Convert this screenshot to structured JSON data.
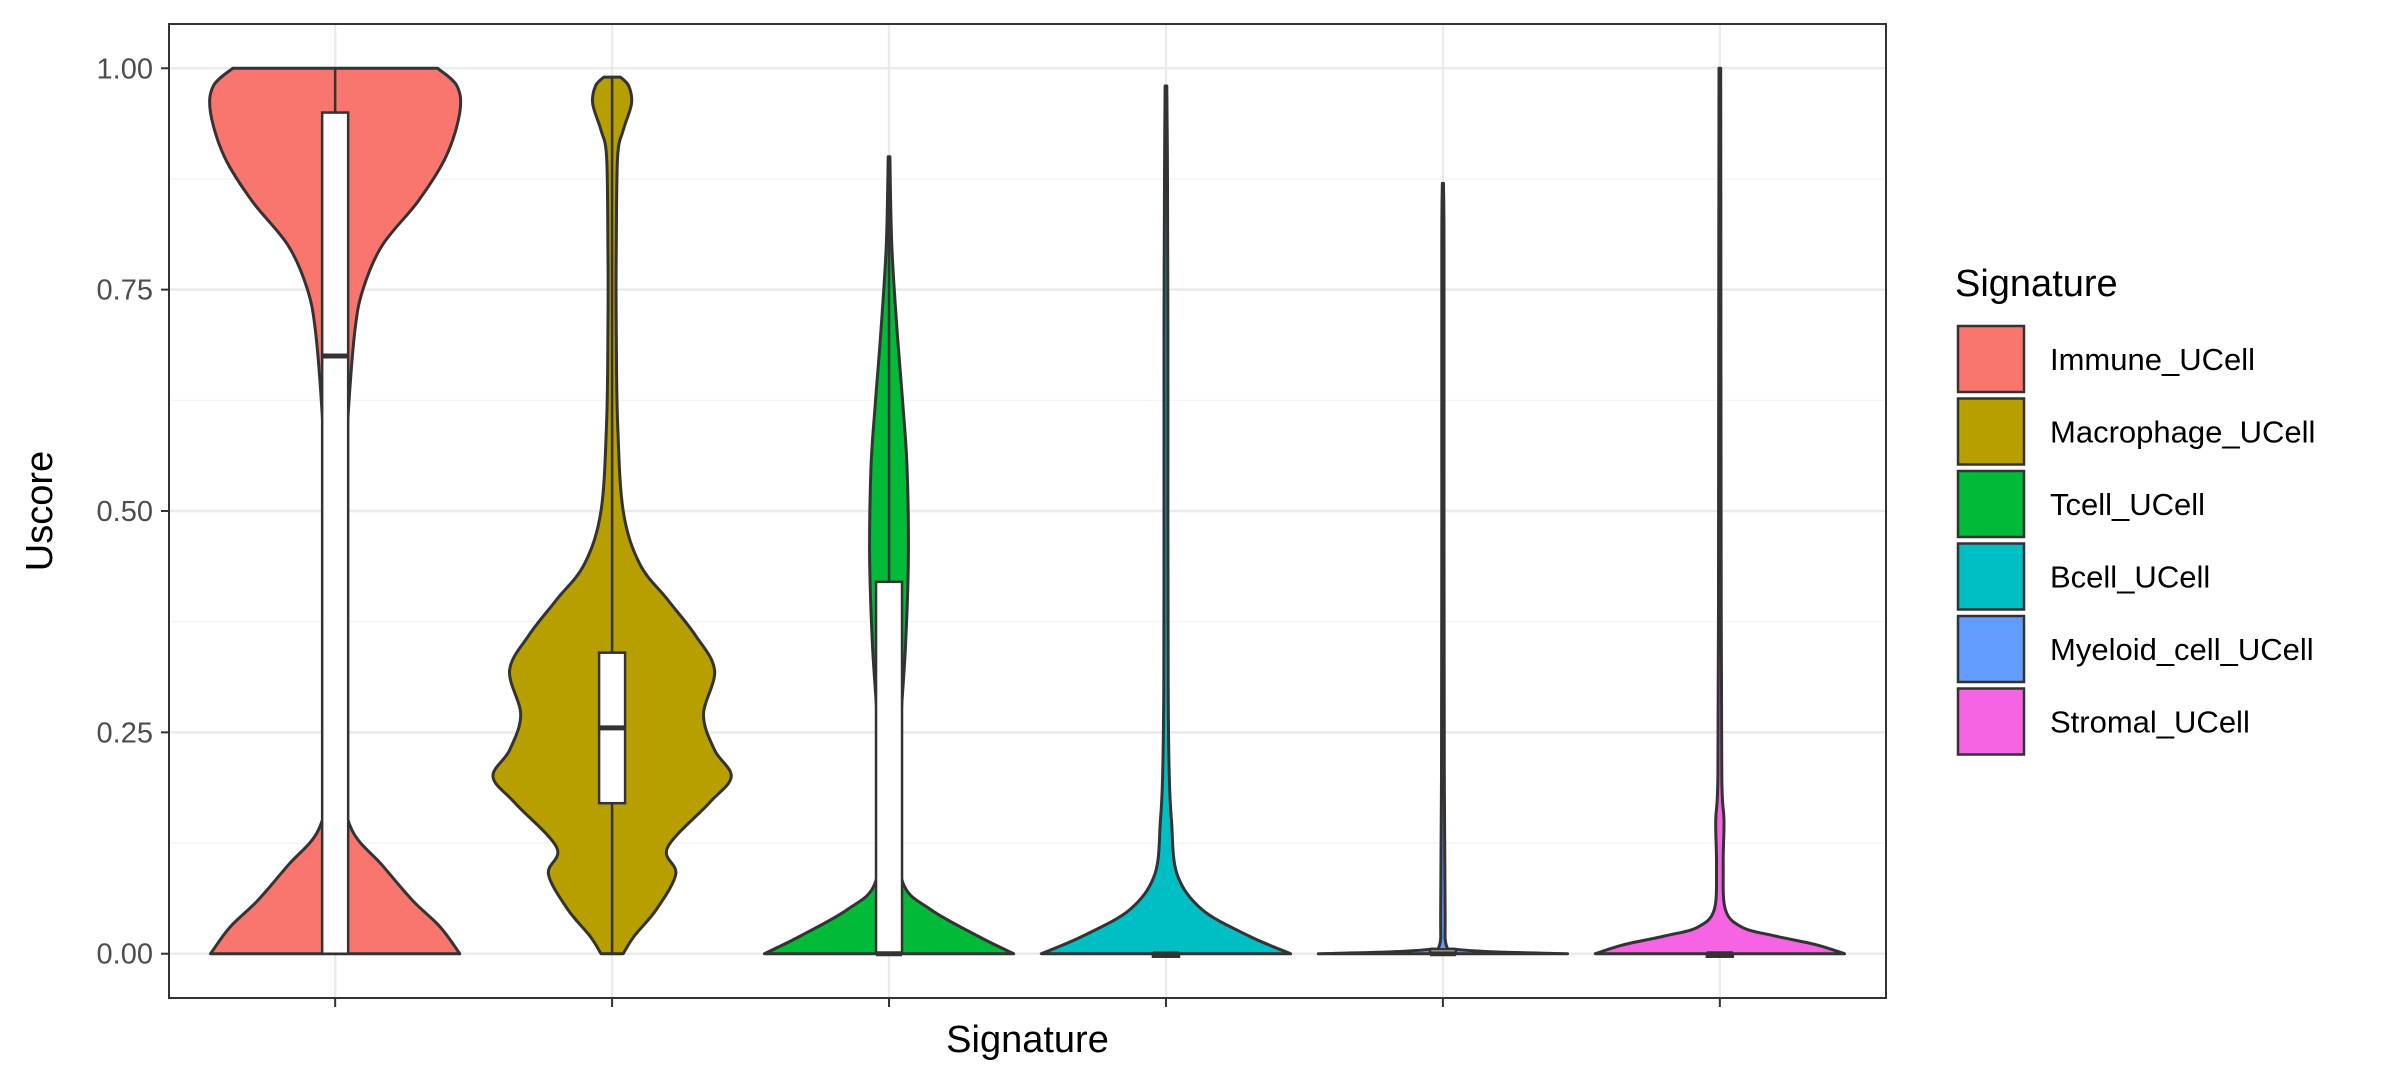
{
  "chart_data": {
    "type": "violin",
    "xlabel": "Signature",
    "ylabel": "Uscore",
    "ylim": [
      -0.05,
      1.05
    ],
    "yticks": [
      "0.00",
      "0.25",
      "0.50",
      "0.75",
      "1.00"
    ],
    "ytick_values": [
      0,
      0.25,
      0.5,
      0.75,
      1.0
    ],
    "grid": true,
    "legend": {
      "title": "Signature",
      "position": "right"
    },
    "series": [
      {
        "name": "Immune_UCell",
        "color": "#F8766D",
        "violin": [
          [
            0.0,
            0.45
          ],
          [
            0.03,
            0.38
          ],
          [
            0.06,
            0.28
          ],
          [
            0.1,
            0.17
          ],
          [
            0.14,
            0.06
          ],
          [
            0.2,
            0.02
          ],
          [
            0.3,
            0.015
          ],
          [
            0.4,
            0.02
          ],
          [
            0.5,
            0.03
          ],
          [
            0.6,
            0.045
          ],
          [
            0.7,
            0.07
          ],
          [
            0.75,
            0.1
          ],
          [
            0.8,
            0.17
          ],
          [
            0.85,
            0.3
          ],
          [
            0.9,
            0.4
          ],
          [
            0.95,
            0.45
          ],
          [
            0.98,
            0.44
          ],
          [
            1.0,
            0.37
          ]
        ],
        "box": {
          "q1": 0.0,
          "median": 0.675,
          "q3": 0.95,
          "lower": 0.0,
          "upper": 1.0
        }
      },
      {
        "name": "Macrophage_UCell",
        "color": "#B79F00",
        "violin": [
          [
            0.0,
            0.04
          ],
          [
            0.02,
            0.08
          ],
          [
            0.05,
            0.16
          ],
          [
            0.09,
            0.23
          ],
          [
            0.12,
            0.2
          ],
          [
            0.17,
            0.35
          ],
          [
            0.2,
            0.43
          ],
          [
            0.23,
            0.37
          ],
          [
            0.27,
            0.33
          ],
          [
            0.32,
            0.37
          ],
          [
            0.36,
            0.3
          ],
          [
            0.4,
            0.2
          ],
          [
            0.44,
            0.1
          ],
          [
            0.5,
            0.04
          ],
          [
            0.6,
            0.02
          ],
          [
            0.7,
            0.015
          ],
          [
            0.8,
            0.015
          ],
          [
            0.9,
            0.02
          ],
          [
            0.93,
            0.04
          ],
          [
            0.96,
            0.07
          ],
          [
            0.98,
            0.06
          ],
          [
            0.99,
            0.03
          ]
        ],
        "box": {
          "q1": 0.17,
          "median": 0.255,
          "q3": 0.34,
          "lower": 0.0,
          "upper": 0.99
        }
      },
      {
        "name": "Tcell_UCell",
        "color": "#00BA38",
        "violin": [
          [
            0.0,
            0.45
          ],
          [
            0.02,
            0.32
          ],
          [
            0.05,
            0.15
          ],
          [
            0.08,
            0.05
          ],
          [
            0.15,
            0.03
          ],
          [
            0.25,
            0.04
          ],
          [
            0.35,
            0.06
          ],
          [
            0.45,
            0.07
          ],
          [
            0.55,
            0.065
          ],
          [
            0.62,
            0.05
          ],
          [
            0.7,
            0.03
          ],
          [
            0.8,
            0.01
          ],
          [
            0.9,
            0.003
          ]
        ],
        "box": {
          "q1": 0.0,
          "median": 0.0,
          "q3": 0.42,
          "lower": 0.0,
          "upper": 0.9
        }
      },
      {
        "name": "Bcell_UCell",
        "color": "#00BFC4",
        "violin": [
          [
            0.0,
            0.45
          ],
          [
            0.02,
            0.3
          ],
          [
            0.05,
            0.13
          ],
          [
            0.09,
            0.04
          ],
          [
            0.15,
            0.02
          ],
          [
            0.2,
            0.012
          ],
          [
            0.3,
            0.008
          ],
          [
            0.5,
            0.007
          ],
          [
            0.7,
            0.007
          ],
          [
            0.9,
            0.005
          ],
          [
            0.98,
            0.003
          ]
        ],
        "box": {
          "q1": 0.0,
          "median": 0.0,
          "q3": 0.0,
          "lower": 0.0,
          "upper": 0.0
        }
      },
      {
        "name": "Myeloid_cell_UCell",
        "color": "#619CFF",
        "violin": [
          [
            0.0,
            0.45
          ],
          [
            0.002,
            0.2
          ],
          [
            0.005,
            0.05
          ],
          [
            0.01,
            0.012
          ],
          [
            0.05,
            0.008
          ],
          [
            0.2,
            0.005
          ],
          [
            0.5,
            0.004
          ],
          [
            0.8,
            0.004
          ],
          [
            0.87,
            0.002
          ]
        ],
        "box": {
          "q1": 0.0,
          "median": 0.0,
          "q3": 0.005,
          "lower": 0.0,
          "upper": 0.0
        }
      },
      {
        "name": "Stromal_UCell",
        "color": "#F564E3",
        "violin": [
          [
            0.0,
            0.45
          ],
          [
            0.01,
            0.35
          ],
          [
            0.02,
            0.2
          ],
          [
            0.03,
            0.08
          ],
          [
            0.05,
            0.02
          ],
          [
            0.1,
            0.012
          ],
          [
            0.15,
            0.015
          ],
          [
            0.2,
            0.007
          ],
          [
            0.4,
            0.005
          ],
          [
            0.7,
            0.004
          ],
          [
            1.0,
            0.003
          ]
        ],
        "box": {
          "q1": 0.0,
          "median": 0.0,
          "q3": 0.0,
          "lower": 0.0,
          "upper": 0.0
        }
      }
    ]
  }
}
